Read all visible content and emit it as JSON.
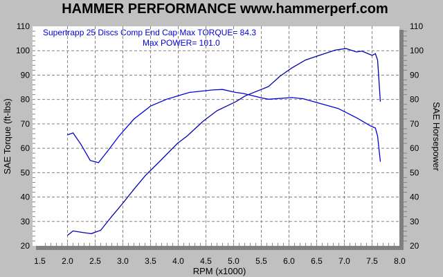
{
  "chart_data": {
    "type": "line",
    "title": "HAMMER PERFORMANCE www.hammerperf.com",
    "xlabel": "RPM (x1000)",
    "ylabel": "SAE Torque (ft-lbs)",
    "y2label": "SAE Horsepower",
    "xlim": [
      1.5,
      8.0
    ],
    "ylim": [
      20,
      110
    ],
    "y2lim": [
      20,
      110
    ],
    "grid": true,
    "x_ticks": [
      "1.5",
      "2.0",
      "2.5",
      "3.0",
      "3.5",
      "4.0",
      "4.5",
      "5.0",
      "5.5",
      "6.0",
      "6.5",
      "7.0",
      "7.5",
      "8.0"
    ],
    "y_ticks": [
      "20",
      "30",
      "40",
      "50",
      "60",
      "70",
      "80",
      "90",
      "100",
      "110"
    ],
    "annotations": [
      "Supertrapp 25 Discs Comp End Cap  Max TORQUE= 84.3",
      "Max POWER= 101.0"
    ],
    "colors": {
      "background": "#c0c0c0",
      "plot": "#ffffff",
      "torque": "#0000dd",
      "power": "#0000aa",
      "grid": "#808080"
    },
    "series": [
      {
        "x": [
          2.0,
          2.1,
          2.24,
          2.41,
          2.56,
          2.74,
          2.93,
          3.2,
          3.5,
          3.79,
          4.2,
          4.62,
          4.8,
          5.04,
          5.17,
          5.52,
          5.63,
          6.05,
          6.26,
          6.51,
          6.89,
          7.22,
          7.47,
          7.56,
          7.6,
          7.65
        ],
        "y": [
          65.5,
          66.3,
          61.7,
          55.0,
          54.1,
          59.3,
          65.0,
          72.0,
          77.3,
          80.1,
          82.9,
          83.9,
          84.1,
          82.9,
          82.5,
          80.6,
          80.1,
          80.8,
          80.3,
          78.7,
          76.3,
          72.5,
          69.2,
          68.3,
          65.0,
          54.5
        ]
      },
      {
        "x": [
          2.0,
          2.1,
          2.3,
          2.43,
          2.6,
          2.79,
          3.0,
          3.2,
          3.41,
          3.66,
          3.99,
          4.16,
          4.45,
          4.7,
          5.04,
          5.21,
          5.63,
          5.84,
          6.05,
          6.3,
          6.55,
          6.84,
          7.03,
          7.22,
          7.32,
          7.5,
          7.56,
          7.6,
          7.65
        ],
        "y": [
          24.3,
          26.1,
          25.4,
          25.0,
          26.4,
          31.8,
          37.5,
          43.2,
          48.9,
          54.5,
          62.1,
          65.0,
          71.1,
          75.4,
          79.1,
          81.5,
          85.3,
          89.6,
          92.9,
          96.2,
          98.1,
          100.3,
          100.9,
          99.5,
          99.8,
          98.1,
          98.8,
          96.2,
          79.1
        ]
      }
    ]
  }
}
